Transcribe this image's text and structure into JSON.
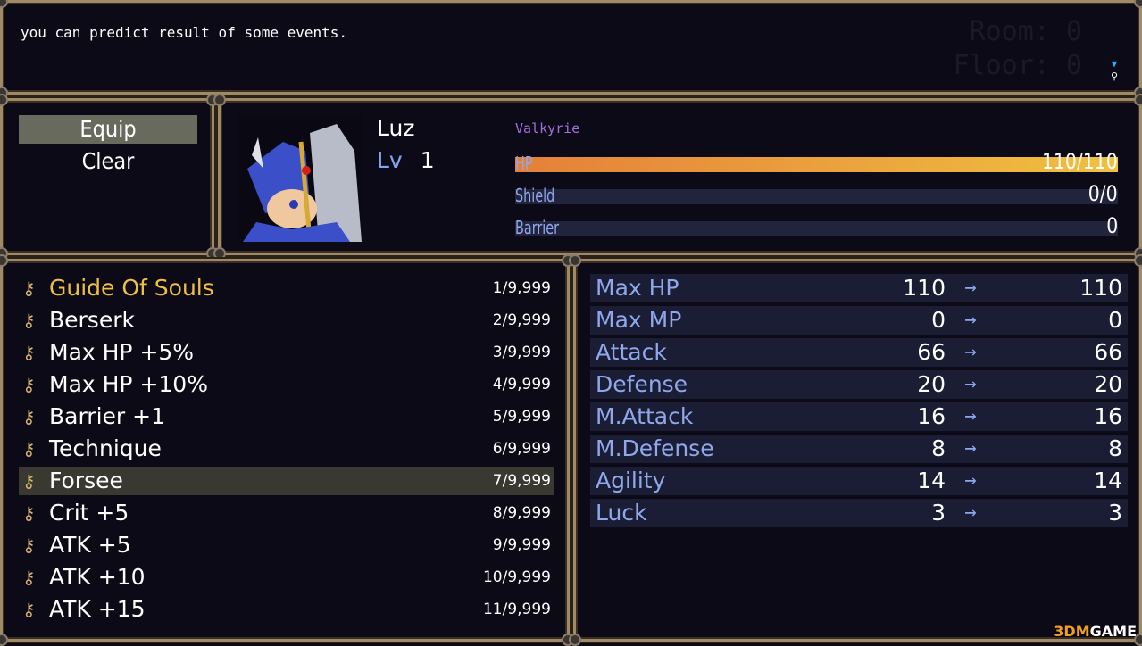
{
  "message": {
    "text": "you can predict result of some events.",
    "room": "Room: 0",
    "floor": "Floor: 0"
  },
  "commands": [
    {
      "label": "Equip",
      "selected": true
    },
    {
      "label": "Clear",
      "selected": false
    }
  ],
  "actor": {
    "name": "Luz",
    "level_label": "Lv",
    "level": "1",
    "class": "Valkyrie",
    "gauges": [
      {
        "label": "HP",
        "value": "110/110",
        "fill": 1.0,
        "color": "#e88a3a"
      },
      {
        "label": "Shield",
        "value": "0/0",
        "fill": 0,
        "color": "#22243e"
      },
      {
        "label": "Barrier",
        "value": "0",
        "fill": 0,
        "color": "#22243e"
      }
    ]
  },
  "items": [
    {
      "name": "Guide Of Souls",
      "count": "1/9,999",
      "highlight": true
    },
    {
      "name": "Berserk",
      "count": "2/9,999"
    },
    {
      "name": "Max HP +5%",
      "count": "3/9,999"
    },
    {
      "name": "Max HP +10%",
      "count": "4/9,999"
    },
    {
      "name": "Barrier +1",
      "count": "5/9,999"
    },
    {
      "name": "Technique",
      "count": "6/9,999"
    },
    {
      "name": "Forsee",
      "count": "7/9,999",
      "selected": true
    },
    {
      "name": "Crit +5",
      "count": "8/9,999"
    },
    {
      "name": "ATK +5",
      "count": "9/9,999"
    },
    {
      "name": "ATK +10",
      "count": "10/9,999"
    },
    {
      "name": "ATK +15",
      "count": "11/9,999"
    }
  ],
  "stats": [
    {
      "name": "Max HP",
      "current": "110",
      "new": "110"
    },
    {
      "name": "Max MP",
      "current": "0",
      "new": "0"
    },
    {
      "name": "Attack",
      "current": "66",
      "new": "66"
    },
    {
      "name": "Defense",
      "current": "20",
      "new": "20"
    },
    {
      "name": "M.Attack",
      "current": "16",
      "new": "16"
    },
    {
      "name": "M.Defense",
      "current": "8",
      "new": "8"
    },
    {
      "name": "Agility",
      "current": "14",
      "new": "14"
    },
    {
      "name": "Luck",
      "current": "3",
      "new": "3"
    }
  ],
  "arrow": "→",
  "watermark": {
    "a": "3DM",
    "b": "GAME"
  }
}
